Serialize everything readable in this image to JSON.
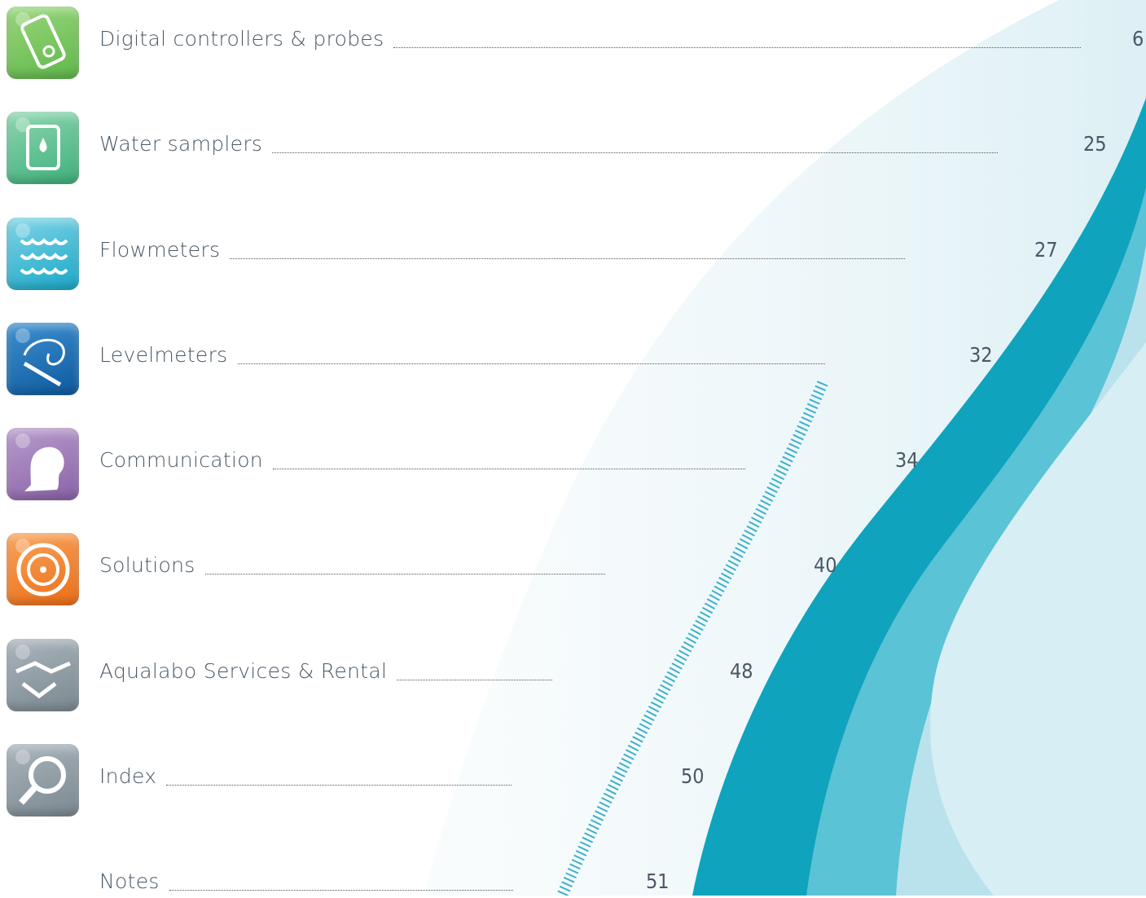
{
  "toc": {
    "entries": [
      {
        "label": "Digital controllers & probes",
        "page": "6"
      },
      {
        "label": "Water samplers",
        "page": "25"
      },
      {
        "label": "Flowmeters",
        "page": "27"
      },
      {
        "label": "Levelmeters",
        "page": "32"
      },
      {
        "label": "Communication",
        "page": "34"
      },
      {
        "label": "Solutions",
        "page": "40"
      },
      {
        "label": "Aqualabo Services & Rental",
        "page": "48"
      },
      {
        "label": "Index",
        "page": "50"
      },
      {
        "label": "Notes",
        "page": "51"
      }
    ]
  }
}
